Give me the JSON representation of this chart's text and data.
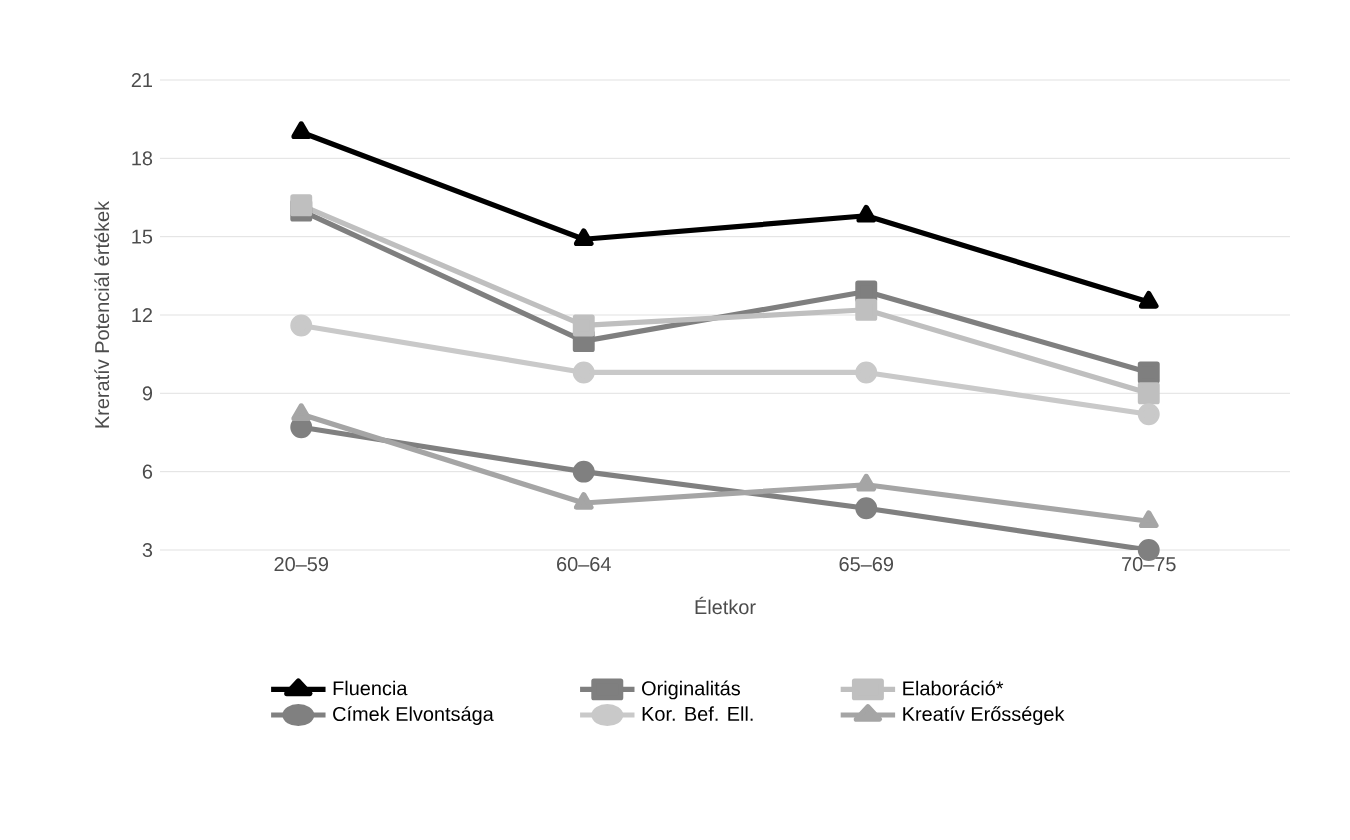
{
  "chart_data": {
    "type": "line",
    "xlabel": "Életkor",
    "ylabel": "Kreratív Potenciál értékek",
    "categories": [
      "20–59",
      "60–64",
      "65–69",
      "70–75"
    ],
    "ylim": [
      3,
      21
    ],
    "yticks": [
      3,
      6,
      9,
      12,
      15,
      18,
      21
    ],
    "grid": "y",
    "legend": "bottom",
    "series": [
      {
        "name": "Fluencia",
        "color": "#000000",
        "marker": "triangle",
        "values": [
          19.0,
          14.9,
          15.8,
          12.5
        ]
      },
      {
        "name": "Originalitás",
        "color": "#7f7f7f",
        "marker": "square",
        "values": [
          16.0,
          11.0,
          12.9,
          9.8
        ]
      },
      {
        "name": "Elaboráció*",
        "color": "#bfbfbf",
        "marker": "square",
        "values": [
          16.2,
          11.6,
          12.2,
          9.0
        ]
      },
      {
        "name": "Címek Elvontsága",
        "color": "#808080",
        "marker": "circle",
        "values": [
          7.7,
          6.0,
          4.6,
          3.0
        ]
      },
      {
        "name": "Kor. Bef. Ell.",
        "color": "#c9c9c9",
        "marker": "circle",
        "values": [
          11.6,
          9.8,
          9.8,
          8.2
        ]
      },
      {
        "name": "Kreatív Erősségek",
        "color": "#a5a5a5",
        "marker": "triangle",
        "values": [
          8.2,
          4.8,
          5.5,
          4.1
        ]
      }
    ]
  }
}
